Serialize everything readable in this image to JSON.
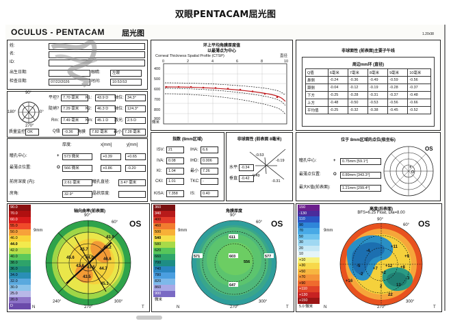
{
  "page_title": "双眼PENTACAM屈光图",
  "header": {
    "brand": "OCULUS - PENTACAM",
    "brand_sub": "屈光图",
    "version": "1.20r38"
  },
  "patient": {
    "last_label": "姓:",
    "first_label": "名:",
    "id_label": "ID:",
    "dob_label": "出生日期:",
    "eye_label": "眼睛:",
    "eye_value": "左眼",
    "exam_date_label": "检查日期:",
    "exam_date_value": "07/22/2026",
    "time_label": "时间:",
    "time_value": "10:53:53"
  },
  "kerato": {
    "rf_label": "平坦?",
    "rf_value": "7.70 毫米",
    "k1_label": "K1:",
    "k1_value": "43.9 D",
    "axis1_label": "轴位:",
    "axis1_value": "34.3°",
    "rs_label": "陡峭?",
    "rs_value": "7.29 毫米",
    "k2_label": "K2:",
    "k2_value": "46.3 D",
    "axis2_label": "轴位:",
    "axis2_value": "124.3°",
    "rm_label": "Rm:",
    "rm_value": "7.49 毫米",
    "km_label": "Km:",
    "km_value": "45.1 D",
    "astig_label": "散光:",
    "astig_value": "2.5 D",
    "quality_label": "质量监控",
    "quality_value": "OK",
    "q_label": "Q值",
    "q_value": "-0.36",
    "diam_label": "角膜",
    "diam_value": "7.82 毫米",
    "min_label": "最小",
    "min_value": "7.28 毫米",
    "dial_top": "90°",
    "dial_left": "180°",
    "dial_right": "0°",
    "dial_bottom": "270°"
  },
  "locations": {
    "thickness_header": "厚度:",
    "x_header": "x[mm]",
    "y_header": "y[mm]",
    "pupil_label": "瞳孔中心:",
    "pupil_sym": "+",
    "pupil_thk": "573 微米",
    "pupil_x": "+0.39",
    "pupil_y": "+0.65",
    "thin_label": "最薄点位置:",
    "thin_sym": "O",
    "thin_thk": "566 微米",
    "thin_x": "+0.86",
    "thin_y": "-0.20",
    "acd_label": "前房深度 (内):",
    "acd_value": "2.61 毫米",
    "pupil_dia_label": "瞳孔直径:",
    "pupil_dia_value": "3.47 毫米",
    "angle_label": "房角:",
    "angle_value": "32.9°",
    "lens_label": "晶状厚度:"
  },
  "ctsp": {
    "title1": "环上平均角膜厚度值",
    "title2": "以最薄点为中心",
    "subtitle": "Corneal Thickness Spatial Profile (CTSP)",
    "unit_top": "直径",
    "unit_side": "微米",
    "x_ticks": [
      "0",
      "2",
      "4",
      "6",
      "8",
      "10"
    ],
    "y_ticks": [
      "400",
      "500",
      "600",
      "700",
      "800",
      "900"
    ]
  },
  "indices": {
    "title": "指数 (8mm区域)",
    "isv_label": "ISV:",
    "isv_value": "21",
    "iha_label": "IHA:",
    "iha_value": "6.6",
    "iva_label": "IVA:",
    "iva_value": "0.08",
    "ihd_label": "IHD:",
    "ihd_value": "0.006",
    "ki_label": "KI:",
    "ki_value": "1.04",
    "rmin_label": "最小",
    "rmin_value": "7.26",
    "cki_label": "CKI:",
    "cki_value": "1.01",
    "tkc_label": "TKC:",
    "tkc_value": "-",
    "kisa_label": "KISA:",
    "kisa_value": "7.358",
    "is_label": "IS:",
    "is_value": "0.40"
  },
  "aberr": {
    "title": "非球面性 (前表面 8毫米)",
    "v1": "-0.53",
    "v2": "-0.19",
    "v3": "-0.49",
    "v4": "-0.31",
    "h_label": "水平:",
    "h_value": "-0.34",
    "v_label": "垂直:",
    "v_value": "-0.42"
  },
  "zones": {
    "title": "非球面性 (前表面)主要子午线",
    "subtitle": "周边mm环 (直径)",
    "header": [
      "Q值",
      "6毫米",
      "7毫米",
      "8毫米",
      "9毫米",
      "10毫米"
    ],
    "rows": [
      [
        "鼻侧",
        "-0.24",
        "-0.36",
        "-0.49",
        "-0.59",
        "-0.56"
      ],
      [
        "颞侧",
        "-0.04",
        "-0.12",
        "-0.19",
        "-0.28",
        "-0.37"
      ],
      [
        "下方",
        "-0.25",
        "-0.28",
        "-0.31",
        "-0.37",
        "-0.48"
      ],
      [
        "上方",
        "-0.48",
        "-0.50",
        "-0.53",
        "-0.56",
        "-0.66"
      ],
      [
        "平均值",
        "-0.25",
        "-0.32",
        "-0.38",
        "-0.45",
        "-0.52"
      ]
    ]
  },
  "thin_loc": {
    "title": "位于 8mm区域的点位(极坐标)",
    "pupil_label": "瞳孔中心:",
    "pupil_value": "0.75mm [59.1°]",
    "thin_label": "最薄点位置:",
    "thin_value": "0.89mm [343.3°]",
    "kmax_label": "最大K值(前表面):",
    "kmax_value": "1.21mm [299.4°]",
    "eye": "OS"
  },
  "maps": {
    "axial": {
      "title": "轴向曲率(前表面)",
      "eye": "OS",
      "mm": "9mm",
      "deg_top": "90°",
      "deg_top_r": "60°",
      "deg_bot": "270°",
      "deg_bot_l": "240°",
      "deg_bot_r": "300°",
      "n": "N",
      "t": "T",
      "legend": [
        "90.0",
        "70.0",
        "60.0",
        "55.0",
        "50.0",
        "46.0",
        "44.0",
        "42.0",
        "40.0",
        "38.0",
        "36.0",
        "34.0",
        "32.0",
        "30.0",
        "25.0",
        "20.0",
        "D"
      ],
      "legend_colors": [
        "#8a1010",
        "#b01010",
        "#d81b1b",
        "#f04a2a",
        "#f7a13a",
        "#f9d43a",
        "#f3ea4d",
        "#b8e04a",
        "#5cc95a",
        "#2ea36a",
        "#1f8f7d",
        "#2a8fb6",
        "#5aa9de",
        "#8cc3ea",
        "#b8b8e8",
        "#8e74c8",
        "#6a4aaa"
      ],
      "values": [
        "43.9",
        "45.7",
        "43.2",
        "45.6",
        "46.6",
        "44.0",
        "43.8",
        "43.5",
        "44.7",
        "43.5",
        "45.1"
      ]
    },
    "pachy": {
      "title": "角膜厚度",
      "eye": "OS",
      "mm": "9mm",
      "deg_top": "90°",
      "deg_top_r": "60°",
      "deg_bot": "270°",
      "n": "N",
      "t": "T",
      "deg_bot_r": "300°",
      "legend": [
        "360",
        "340",
        "400",
        "460",
        "500",
        "540",
        "580",
        "620",
        "660",
        "700",
        "740",
        "780",
        "820",
        "860",
        "900",
        "微米"
      ],
      "legend_colors": [
        "#7a1010",
        "#b71a1a",
        "#e33b2a",
        "#f27c2f",
        "#f7b037",
        "#f5e04a",
        "#a8da48",
        "#57c65a",
        "#2fa66a",
        "#1e8d84",
        "#2a86c0",
        "#4b9fe0",
        "#7db9ea",
        "#a9a9e6",
        "#7a6ac4",
        "#ffffff"
      ],
      "values": [
        "611",
        "571",
        "603",
        "577",
        "556",
        "647"
      ]
    },
    "elev": {
      "title": "高度(后表面)",
      "subtitle": "BFS=6.25 Float, Dia=8.00",
      "eye": "OS",
      "mm": "9mm",
      "deg_top": "90°",
      "deg_top_r": "60°",
      "deg_bot": "270°",
      "deg_bot_r": "300°",
      "n": "N",
      "t": "T",
      "legend": [
        "150",
        "-130",
        "110",
        "90",
        "70",
        "50",
        "30",
        "20",
        "10",
        "+10",
        "+30",
        "+50",
        "+70",
        "+90",
        "+110",
        "+130",
        "+150",
        "5.0 微米"
      ],
      "legend_colors": [
        "#6b1f8c",
        "#4a2c9c",
        "#2a56c4",
        "#2f86d9",
        "#48a9e6",
        "#6fc3ee",
        "#9fd8f2",
        "#c6e8f5",
        "#e5f4f7",
        "#f7f07a",
        "#f7d84a",
        "#f7b640",
        "#f49438",
        "#ef6b2e",
        "#e04227",
        "#c72222",
        "#9b1515",
        "#ffffff"
      ],
      "values": [
        "+11",
        "+9",
        "+12",
        "+8",
        "+16",
        "+7",
        "+2",
        "2",
        "3",
        "-4",
        "-5",
        "13",
        "22",
        "-2"
      ]
    }
  }
}
